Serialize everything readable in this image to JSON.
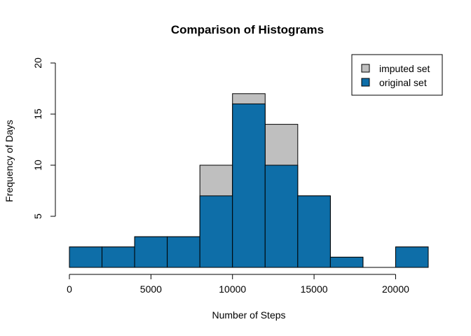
{
  "chart_data": {
    "type": "bar",
    "title": "Comparison of Histograms",
    "xlabel": "Number of Steps",
    "ylabel": "Frequency of Days",
    "xlim": [
      0,
      22000
    ],
    "ylim": [
      0,
      20
    ],
    "bin_edges": [
      0,
      2000,
      4000,
      6000,
      8000,
      10000,
      12000,
      14000,
      16000,
      18000,
      20000,
      22000
    ],
    "x_ticks": [
      0,
      5000,
      10000,
      15000,
      20000
    ],
    "y_ticks": [
      5,
      10,
      15,
      20
    ],
    "series": [
      {
        "name": "imputed set",
        "color": "#bfbfbf",
        "values": [
          2,
          2,
          3,
          3,
          10,
          17,
          14,
          7,
          1,
          0,
          2
        ]
      },
      {
        "name": "original set",
        "color": "#0e6ea8",
        "values": [
          2,
          2,
          3,
          3,
          7,
          16,
          10,
          7,
          1,
          0,
          2
        ]
      }
    ],
    "legend_position": "top-right",
    "grid": false
  }
}
